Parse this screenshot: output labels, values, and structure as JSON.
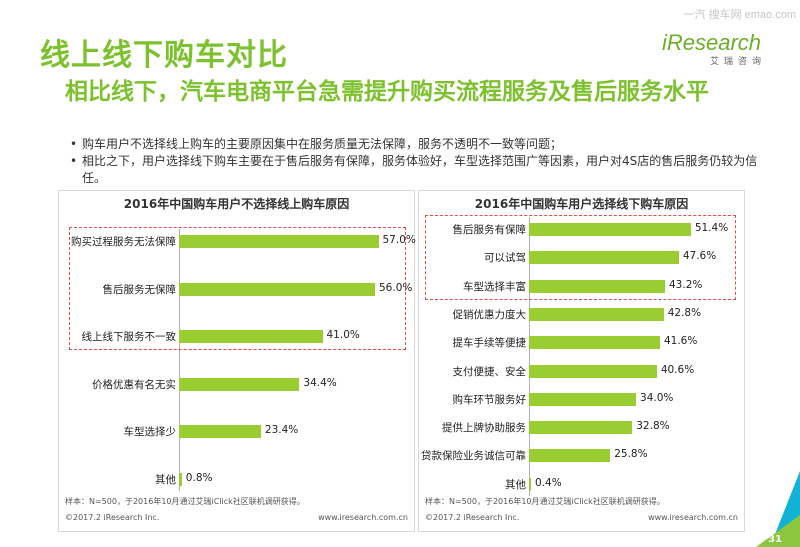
{
  "header": {
    "title": "线上线下购车对比",
    "subtitle": "相比线下，汽车电商平台急需提升购买流程服务及售后服务水平",
    "logo_text": "iResearch",
    "logo_sub": "艾瑞咨询",
    "corner_text": "一汽 搜车网 emao.com"
  },
  "bullets": [
    "购车用户不选择线上购车的主要原因集中在服务质量无法保障，服务不透明不一致等问题；",
    "相比之下，用户选择线下购车主要在于售后服务有保障，服务体验好，车型选择范围广等因素，用户对4S店的售后服务仍较为信任。"
  ],
  "chart_data": [
    {
      "type": "bar",
      "orientation": "horizontal",
      "title": "2016年中国购车用户不选择线上购车原因",
      "categories": [
        "购买过程服务无法保障",
        "售后服务无保障",
        "线上线下服务不一致",
        "价格优惠有名无实",
        "车型选择少",
        "其他"
      ],
      "values": [
        57.0,
        56.0,
        41.0,
        34.4,
        23.4,
        0.8
      ],
      "value_labels": [
        "57.0%",
        "56.0%",
        "41.0%",
        "34.4%",
        "23.4%",
        "0.8%"
      ],
      "xlim": [
        0,
        60
      ],
      "highlighted_count": 3,
      "bar_color": "#9acd32",
      "note": "样本：N=500，于2016年10月通过艾瑞iClick社区联机调研获得。",
      "footer_left": "©2017.2 iResearch Inc.",
      "footer_right": "www.iresearch.com.cn"
    },
    {
      "type": "bar",
      "orientation": "horizontal",
      "title": "2016年中国购车用户选择线下购车原因",
      "categories": [
        "售后服务有保障",
        "可以试驾",
        "车型选择丰富",
        "促销优惠力度大",
        "提车手续等便捷",
        "支付便捷、安全",
        "购车环节服务好",
        "提供上牌协助服务",
        "贷款保险业务诚信可靠",
        "其他"
      ],
      "values": [
        51.4,
        47.6,
        43.2,
        42.8,
        41.6,
        40.6,
        34.0,
        32.8,
        25.8,
        0.4
      ],
      "value_labels": [
        "51.4%",
        "47.6%",
        "43.2%",
        "42.8%",
        "41.6%",
        "40.6%",
        "34.0%",
        "32.8%",
        "25.8%",
        "0.4%"
      ],
      "xlim": [
        0,
        54
      ],
      "highlighted_count": 3,
      "bar_color": "#9acd32",
      "note": "样本：N=500，于2016年10月通过艾瑞iClick社区联机调研获得。",
      "footer_left": "©2017.2 iResearch Inc.",
      "footer_right": "www.iresearch.com.cn"
    }
  ],
  "page_number": "31"
}
